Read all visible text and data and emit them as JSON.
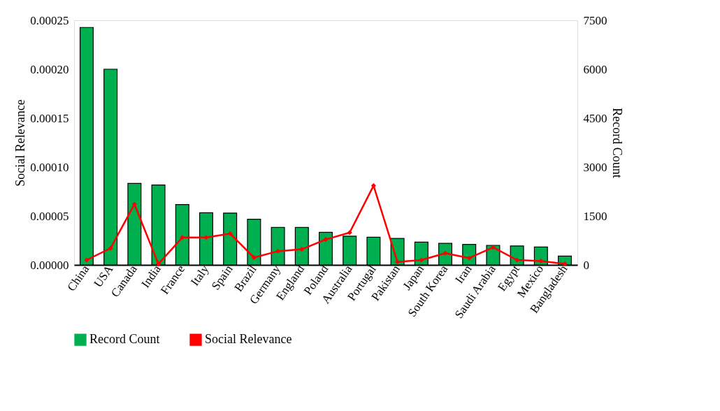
{
  "chart_data": {
    "type": "bar",
    "ylabel": "Social Relevance",
    "y2label": "Record Count",
    "categories": [
      "China",
      "USA",
      "Canada",
      "India",
      "France",
      "Italy",
      "Spain",
      "Brazil",
      "Germany",
      "England",
      "Poland",
      "Australia",
      "Portugal",
      "Pakistan",
      "Japan",
      "South Korea",
      "Iran",
      "Saudi Arabia",
      "Egypt",
      "Mexico",
      "Bangladesh"
    ],
    "series": [
      {
        "name": "Record Count",
        "axis": "y2",
        "color": "#00b050",
        "values": [
          7280,
          6000,
          2500,
          2450,
          1850,
          1600,
          1590,
          1400,
          1150,
          1150,
          1000,
          880,
          850,
          810,
          700,
          660,
          630,
          600,
          580,
          550,
          270
        ]
      },
      {
        "name": "Social Relevance",
        "type": "line",
        "axis": "y",
        "color": "#ff0000",
        "values": [
          5e-06,
          1.7e-05,
          6.2e-05,
          1e-06,
          2.8e-05,
          2.8e-05,
          3.2e-05,
          7.5e-06,
          1.4e-05,
          1.6e-05,
          2.6e-05,
          3.3e-05,
          8.1e-05,
          3e-06,
          5e-06,
          1.2e-05,
          7e-06,
          1.8e-05,
          5e-06,
          4e-06,
          1e-06
        ]
      }
    ],
    "ylim": [
      0,
      0.00025
    ],
    "yticks": [
      {
        "value": 0,
        "label": "0.00000"
      },
      {
        "value": 5e-05,
        "label": "0.00005"
      },
      {
        "value": 0.0001,
        "label": "0.00010"
      },
      {
        "value": 0.00015,
        "label": "0.00015"
      },
      {
        "value": 0.0002,
        "label": "0.00020"
      },
      {
        "value": 0.00025,
        "label": "0.00025"
      }
    ],
    "y2lim": [
      0,
      7500
    ],
    "y2ticks": [
      0,
      1500,
      3000,
      4500,
      6000,
      7500
    ],
    "marker": "diamond",
    "legend": "bottom",
    "grid": false
  }
}
